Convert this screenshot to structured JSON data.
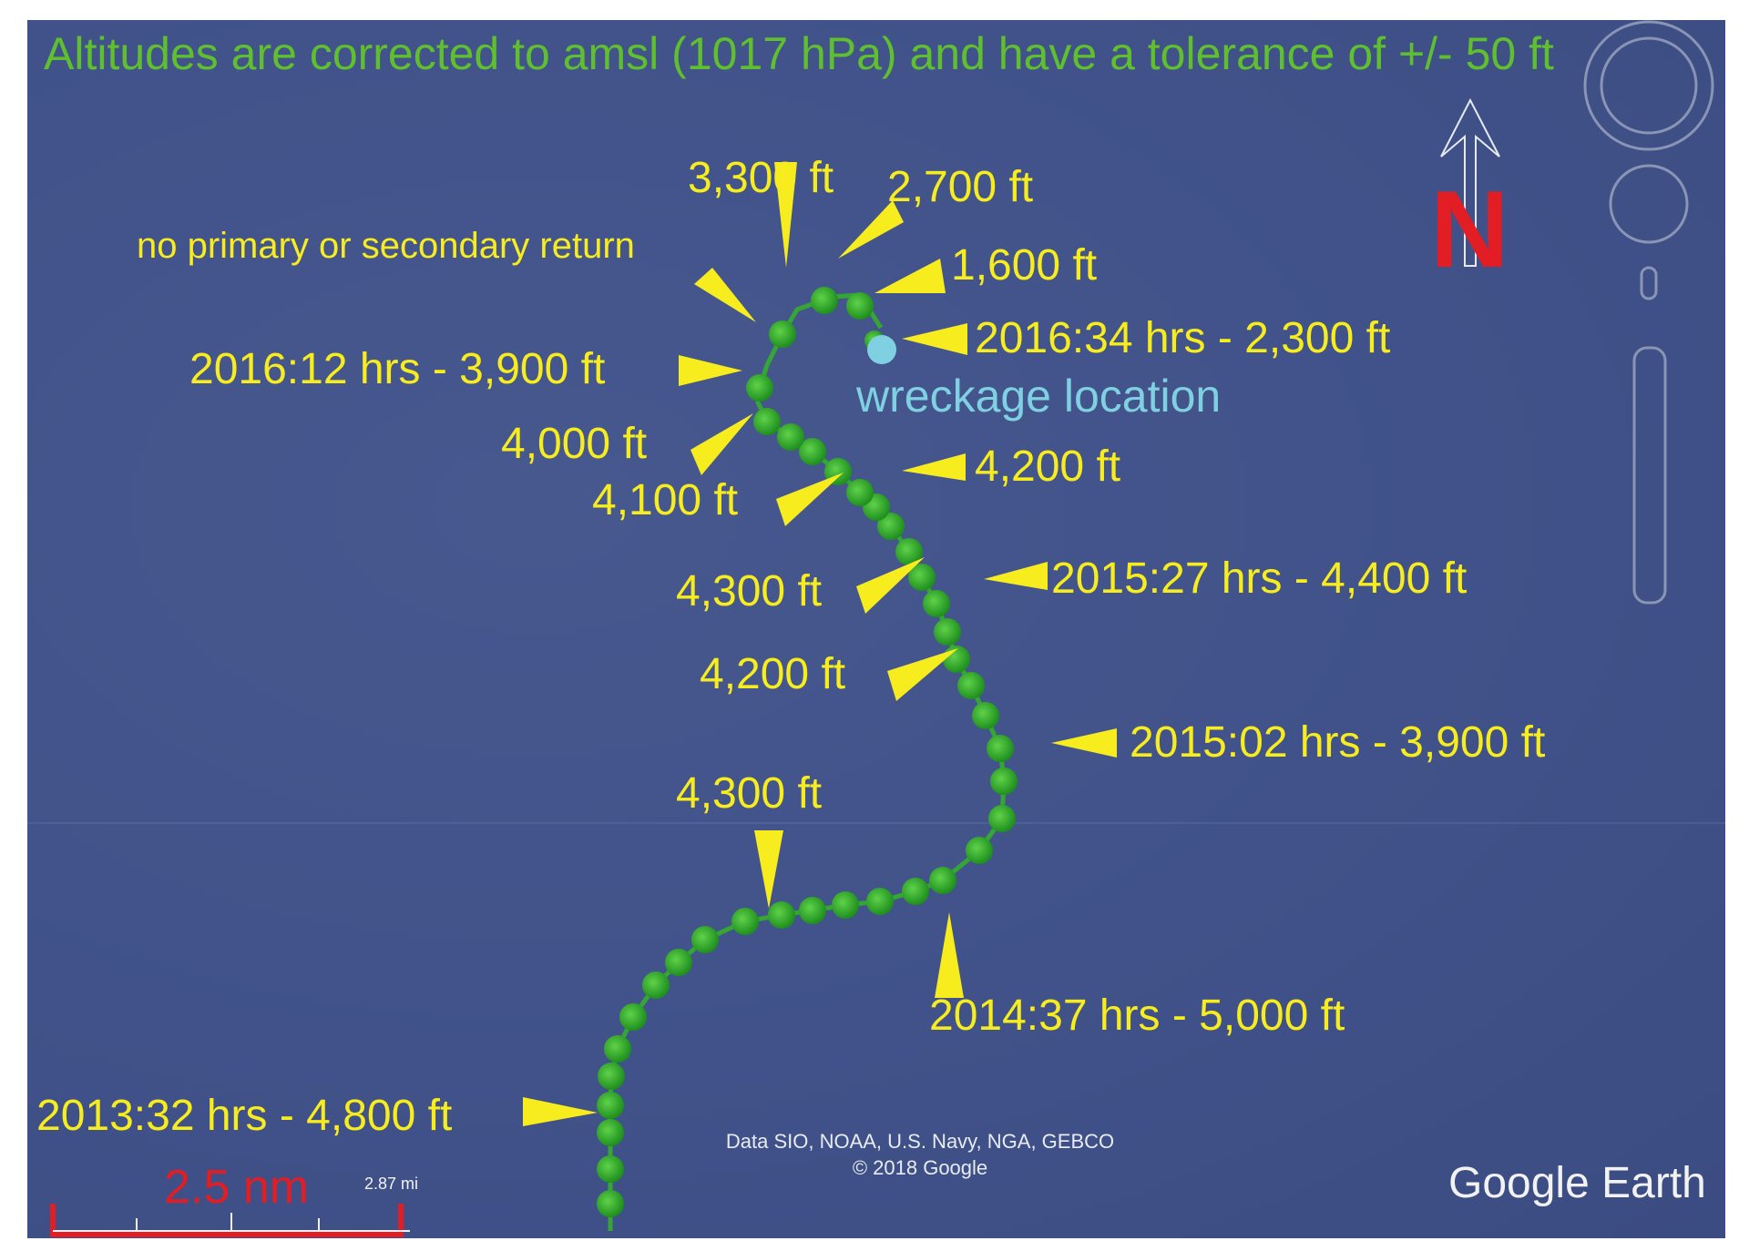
{
  "header": {
    "note": "Altitudes are corrected to amsl (1017 hPa) and have a tolerance of +/- 50 ft"
  },
  "annotations": {
    "a3300_top": "3,300 ft",
    "a2700": "2,700 ft",
    "a1600": "1,600 ft",
    "no_return": "no primary or secondary return",
    "t2016_34": "2016:34 hrs - 2,300 ft",
    "t2016_12": "2016:12 hrs - 3,900 ft",
    "a4000": "4,000 ft",
    "a4200_upper": "4,200 ft",
    "a4100": "4,100 ft",
    "t2015_27": "2015:27 hrs - 4,400 ft",
    "a4300_mid": "4,300 ft",
    "a4200_lower": "4,200 ft",
    "t2015_02": "2015:02 hrs - 3,900 ft",
    "a4300_low": "4,300 ft",
    "t2014_37": "2014:37 hrs - 5,000 ft",
    "t2013_32": "2013:32 hrs - 4,800 ft"
  },
  "wreckage": {
    "label": "wreckage location",
    "color": "#7fd0e0"
  },
  "compass": {
    "north_letter": "N",
    "color": "#e21d24"
  },
  "scale_bar": {
    "nm_label": "2.5 nm",
    "mi_label": "2.87 mi",
    "color": "#e21d24"
  },
  "attribution": {
    "line1": "Data SIO, NOAA, U.S. Navy, NGA, GEBCO",
    "line2": "© 2018 Google"
  },
  "logo": {
    "text": "Google Earth"
  },
  "colors": {
    "annotation": "#f7ec1e",
    "track": "#2fa32a",
    "header": "#5fbf2e",
    "ocean": "#42548b"
  }
}
